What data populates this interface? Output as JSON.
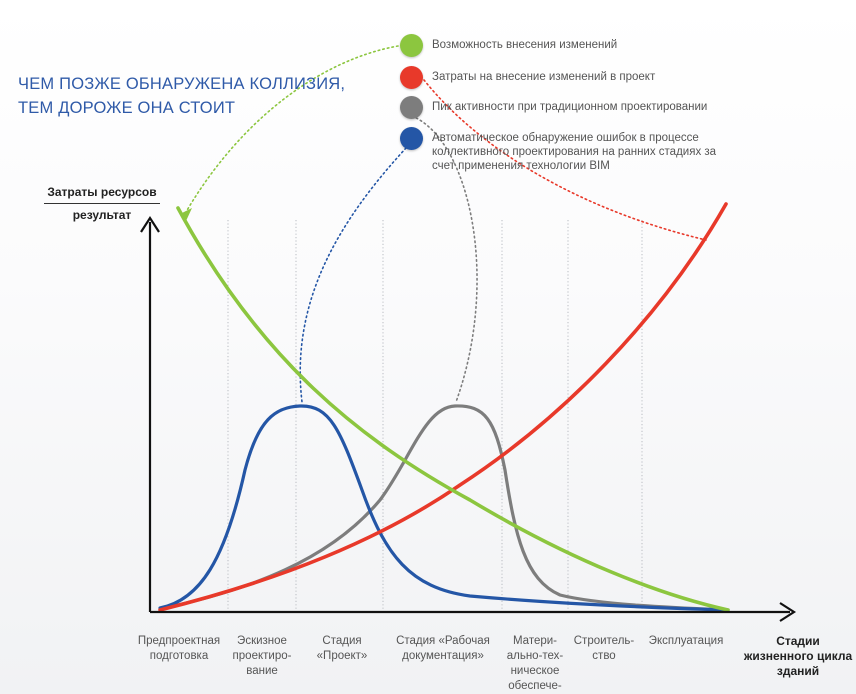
{
  "headline": {
    "line1": "ЧЕМ ПОЗЖЕ ОБНАРУЖЕНА КОЛЛИЗИЯ,",
    "line2": "ТЕМ ДОРОЖЕ ОНА СТОИТ"
  },
  "legend": [
    {
      "label": "Возможность внесения изменений",
      "color": "#8cc63f"
    },
    {
      "label": "Затраты на внесение изменений в проект",
      "color": "#e8392a"
    },
    {
      "label": "Пик активности при традиционном проектировании",
      "color": "#7d7d7d"
    },
    {
      "label": "Автоматическое обнаружение ошибок в процессе коллективного проектирования на ранних стадиях за счет применения технологии BIM",
      "color": "#2456a6"
    }
  ],
  "axes": {
    "y_top": "Затраты ресурсов",
    "y_bottom": "результат",
    "x": "Стадии жизненного цикла зданий"
  },
  "stages": [
    {
      "label": "Предпроектная подготовка"
    },
    {
      "label": "Эскизное проектиро-вание"
    },
    {
      "label": "Стадия «Проект»"
    },
    {
      "label": "Стадия «Рабочая документация»"
    },
    {
      "label": "Матери-ально-тех-ническое обеспече-"
    },
    {
      "label": "Строитель-ство"
    },
    {
      "label": "Эксплуатация"
    }
  ],
  "colors": {
    "green": "#8cc63f",
    "red": "#e8392a",
    "grey": "#7d7d7d",
    "blue": "#2456a6",
    "axis": "#111111"
  }
}
